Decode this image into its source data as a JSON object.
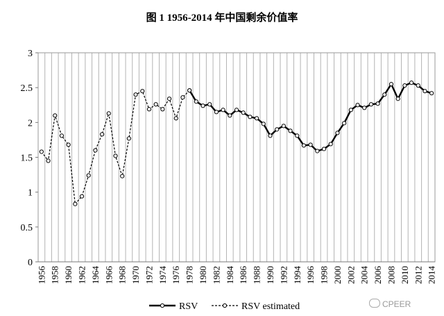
{
  "chart_data": {
    "type": "line",
    "title": "图 1 1956-2014 年中国剩余价值率",
    "xlabel": "",
    "ylabel": "",
    "ylim": [
      0,
      3
    ],
    "yticks": [
      "0",
      "0.5",
      "1",
      "1.5",
      "2",
      "2.5",
      "3"
    ],
    "xlim": [
      1956,
      2014
    ],
    "xtick_years": [
      1956,
      1958,
      1960,
      1962,
      1964,
      1966,
      1968,
      1970,
      1972,
      1974,
      1976,
      1978,
      1980,
      1982,
      1984,
      1986,
      1988,
      1990,
      1992,
      1994,
      1996,
      1998,
      2000,
      2002,
      2004,
      2006,
      2008,
      2010,
      2012,
      2014
    ],
    "grid": "vertical",
    "legend": "bottom",
    "series": [
      {
        "name": "RSV",
        "style": "solid",
        "x": [
          1978,
          1979,
          1980,
          1981,
          1982,
          1983,
          1984,
          1985,
          1986,
          1987,
          1988,
          1989,
          1990,
          1991,
          1992,
          1993,
          1994,
          1995,
          1996,
          1997,
          1998,
          1999,
          2000,
          2001,
          2002,
          2003,
          2004,
          2005,
          2006,
          2007,
          2008,
          2009,
          2010,
          2011,
          2012,
          2013,
          2014
        ],
        "values": [
          2.46,
          2.3,
          2.24,
          2.26,
          2.15,
          2.18,
          2.1,
          2.18,
          2.14,
          2.08,
          2.06,
          1.98,
          1.81,
          1.9,
          1.95,
          1.88,
          1.81,
          1.67,
          1.68,
          1.59,
          1.62,
          1.69,
          1.85,
          1.99,
          2.18,
          2.25,
          2.21,
          2.26,
          2.27,
          2.4,
          2.55,
          2.34,
          2.53,
          2.57,
          2.53,
          2.45,
          2.42
        ]
      },
      {
        "name": "RSV estimated",
        "style": "dashed",
        "x": [
          1956,
          1957,
          1958,
          1959,
          1960,
          1961,
          1962,
          1963,
          1964,
          1965,
          1966,
          1967,
          1968,
          1969,
          1970,
          1971,
          1972,
          1973,
          1974,
          1975,
          1976,
          1977,
          1978
        ],
        "values": [
          1.58,
          1.45,
          2.1,
          1.81,
          1.68,
          0.83,
          0.94,
          1.24,
          1.6,
          1.83,
          2.13,
          1.52,
          1.23,
          1.77,
          2.4,
          2.45,
          2.19,
          2.26,
          2.19,
          2.34,
          2.06,
          2.36,
          2.46
        ]
      }
    ]
  },
  "watermark": {
    "text": "CPEER",
    "icon": "wechat-icon"
  }
}
